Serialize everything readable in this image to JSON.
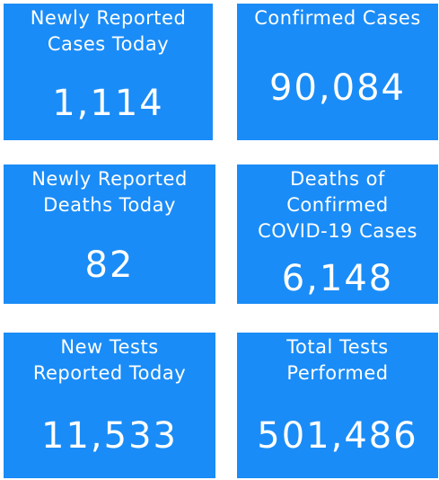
{
  "tiles": [
    {
      "label": [
        "Newly Reported",
        "Cases Today"
      ],
      "value": "1,114"
    },
    {
      "label": [
        "Confirmed Cases"
      ],
      "value": "90,084"
    },
    {
      "label": [
        "Newly Reported",
        "Deaths Today"
      ],
      "value": "82"
    },
    {
      "label": [
        "Deaths of",
        "Confirmed",
        "COVID-19 Cases"
      ],
      "value": "6,148"
    },
    {
      "label": [
        "New Tests",
        "Reported Today"
      ],
      "value": "11,533"
    },
    {
      "label": [
        "Total Tests",
        "Performed"
      ],
      "value": "501,486"
    }
  ]
}
